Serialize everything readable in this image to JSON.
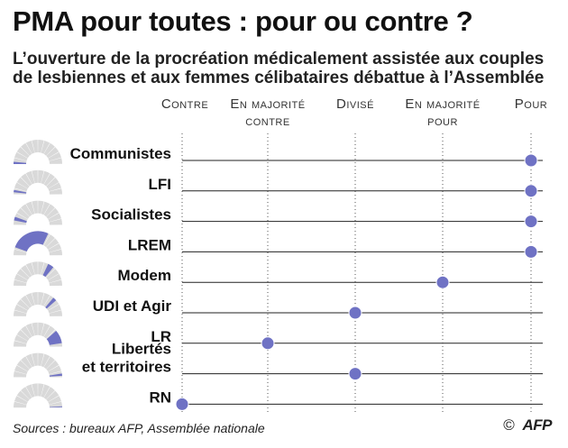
{
  "title": "PMA pour toutes : pour ou contre ?",
  "subtitle_line1": "L’ouverture de la procréation médicalement assistée aux couples",
  "subtitle_line2": "de lesbiennes et aux femmes célibataires débattue à l’Assemblée",
  "columns": [
    {
      "line1": "Contre",
      "line2": ""
    },
    {
      "line1": "En majorité",
      "line2": "contre"
    },
    {
      "line1": "Divisé",
      "line2": ""
    },
    {
      "line1": "En majorité",
      "line2": "pour"
    },
    {
      "line1": "Pour",
      "line2": ""
    }
  ],
  "source": "Sources : bureaux AFP, Assemblée nationale",
  "credit_symbol": "©",
  "credit_agency": "AFP",
  "colors": {
    "dot": "#6f72c4",
    "dot_stroke": "#ffffff",
    "gauge_bg": "#d9d9d9",
    "gauge_group": "#6f72c4",
    "row_line": "#222222",
    "guide_line": "#555555"
  },
  "chart_data": {
    "type": "scatter",
    "scale_categories": [
      "Contre",
      "En majorité contre",
      "Divisé",
      "En majorité pour",
      "Pour"
    ],
    "groups": [
      {
        "label": [
          "Communistes"
        ],
        "position": 4,
        "seat_share": 0.03
      },
      {
        "label": [
          "LFI"
        ],
        "position": 4,
        "seat_share": 0.03
      },
      {
        "label": [
          "Socialistes"
        ],
        "position": 4,
        "seat_share": 0.05
      },
      {
        "label": [
          "LREM"
        ],
        "position": 4,
        "seat_share": 0.53
      },
      {
        "label": [
          "Modem"
        ],
        "position": 3,
        "seat_share": 0.08
      },
      {
        "label": [
          "UDI et Agir"
        ],
        "position": 2,
        "seat_share": 0.05
      },
      {
        "label": [
          "LR"
        ],
        "position": 1,
        "seat_share": 0.18
      },
      {
        "label": [
          "Libertés",
          "et territoires"
        ],
        "position": 2,
        "seat_share": 0.03
      },
      {
        "label": [
          "RN"
        ],
        "position": 0,
        "seat_share": 0.01
      }
    ]
  }
}
